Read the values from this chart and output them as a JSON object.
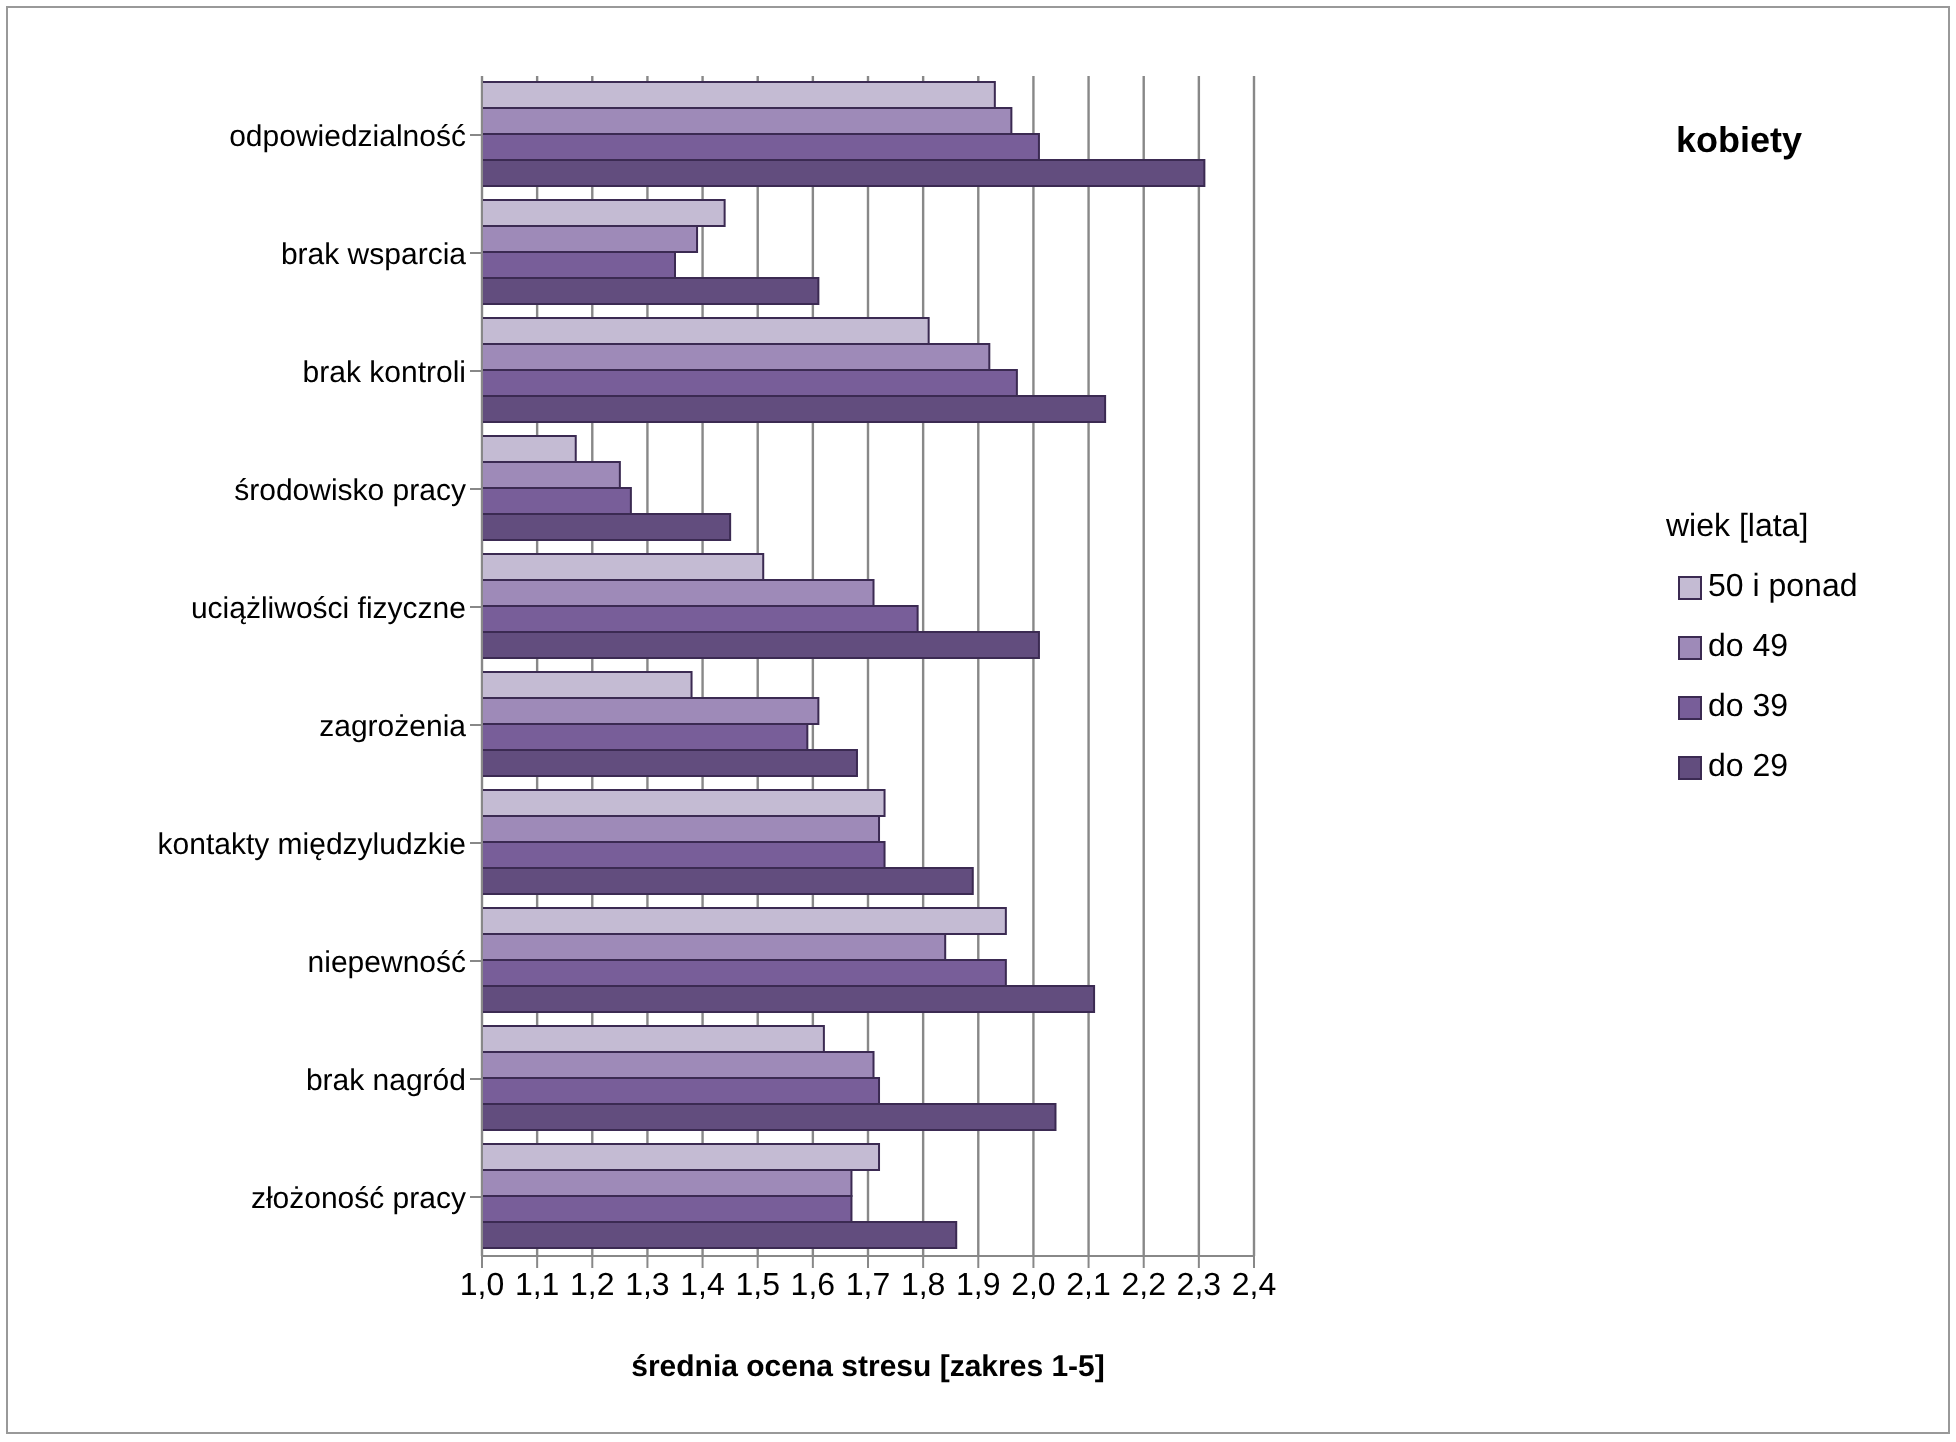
{
  "chart_data": {
    "type": "bar",
    "orientation": "horizontal",
    "title": "kobiety",
    "xlabel": "średnia ocena stresu [zakres 1-5]",
    "legend_title": "wiek [lata]",
    "categories": [
      "odpowiedzialność",
      "brak wsparcia",
      "brak kontroli",
      "środowisko pracy",
      "uciążliwości fizyczne",
      "zagrożenia",
      "kontakty międzyludzkie",
      "niepewność",
      "brak nagród",
      "złożoność pracy"
    ],
    "series": [
      {
        "name": "50 i ponad",
        "color": "#c4bbd3",
        "values": [
          1.93,
          1.44,
          1.81,
          1.17,
          1.51,
          1.38,
          1.73,
          1.95,
          1.62,
          1.72
        ]
      },
      {
        "name": "do 49",
        "color": "#9e8ab8",
        "values": [
          1.96,
          1.39,
          1.92,
          1.25,
          1.71,
          1.61,
          1.72,
          1.84,
          1.71,
          1.67
        ]
      },
      {
        "name": "do 39",
        "color": "#785e99",
        "values": [
          2.01,
          1.35,
          1.97,
          1.27,
          1.79,
          1.59,
          1.73,
          1.95,
          1.72,
          1.67
        ]
      },
      {
        "name": "do 29",
        "color": "#624d7e",
        "values": [
          2.31,
          1.61,
          2.13,
          1.45,
          2.01,
          1.68,
          1.89,
          2.11,
          2.04,
          1.86
        ]
      }
    ],
    "xlim": [
      1.0,
      2.4
    ],
    "xticks": [
      {
        "value": 1.0,
        "label": "1,0"
      },
      {
        "value": 1.1,
        "label": "1,1"
      },
      {
        "value": 1.2,
        "label": "1,2"
      },
      {
        "value": 1.3,
        "label": "1,3"
      },
      {
        "value": 1.4,
        "label": "1,4"
      },
      {
        "value": 1.5,
        "label": "1,5"
      },
      {
        "value": 1.6,
        "label": "1,6"
      },
      {
        "value": 1.7,
        "label": "1,7"
      },
      {
        "value": 1.8,
        "label": "1,8"
      },
      {
        "value": 1.9,
        "label": "1,9"
      },
      {
        "value": 2.0,
        "label": "2,0"
      },
      {
        "value": 2.1,
        "label": "2,1"
      },
      {
        "value": 2.2,
        "label": "2,2"
      },
      {
        "value": 2.3,
        "label": "2,3"
      },
      {
        "value": 2.4,
        "label": "2,4"
      }
    ],
    "grid": "x",
    "legend": "right"
  }
}
